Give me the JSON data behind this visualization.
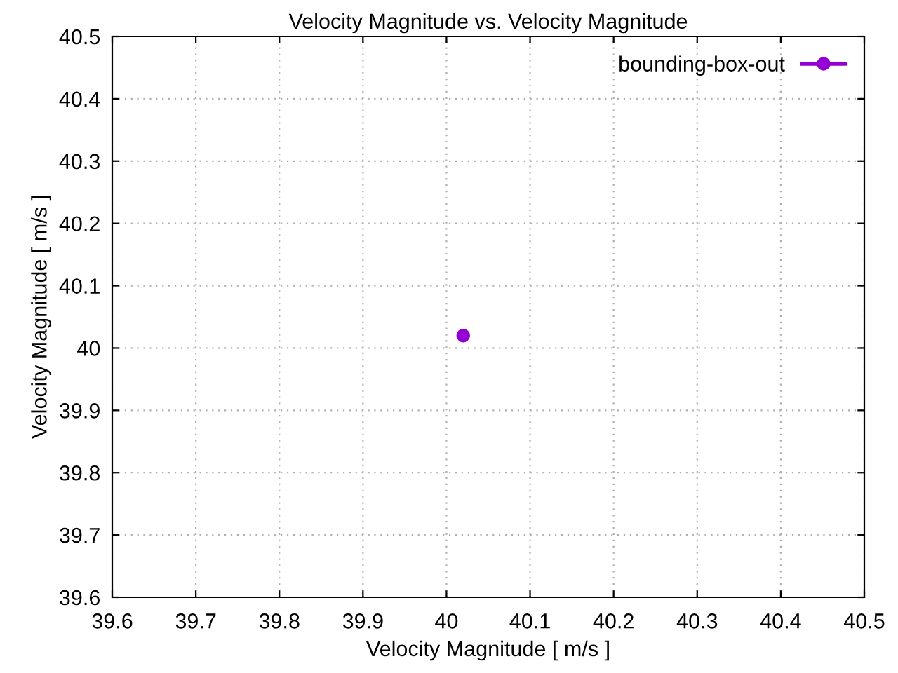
{
  "chart_data": {
    "type": "line",
    "title": "Velocity Magnitude vs. Velocity Magnitude",
    "xlabel": "Velocity Magnitude [ m/s ]",
    "ylabel": "Velocity Magnitude [ m/s ]",
    "series": [
      {
        "name": "bounding-box-out",
        "color": "#9400d3",
        "x": [
          40.02
        ],
        "values": [
          40.02
        ]
      }
    ],
    "xlim": [
      39.6,
      40.5
    ],
    "ylim": [
      39.6,
      40.5
    ],
    "xticks": [
      39.6,
      39.7,
      39.8,
      39.9,
      40,
      40.1,
      40.2,
      40.3,
      40.4,
      40.5
    ],
    "yticks": [
      39.6,
      39.7,
      39.8,
      39.9,
      40,
      40.1,
      40.2,
      40.3,
      40.4,
      40.5
    ],
    "grid": true,
    "legend": "top right",
    "marker": "circle",
    "line_style": "solid"
  }
}
